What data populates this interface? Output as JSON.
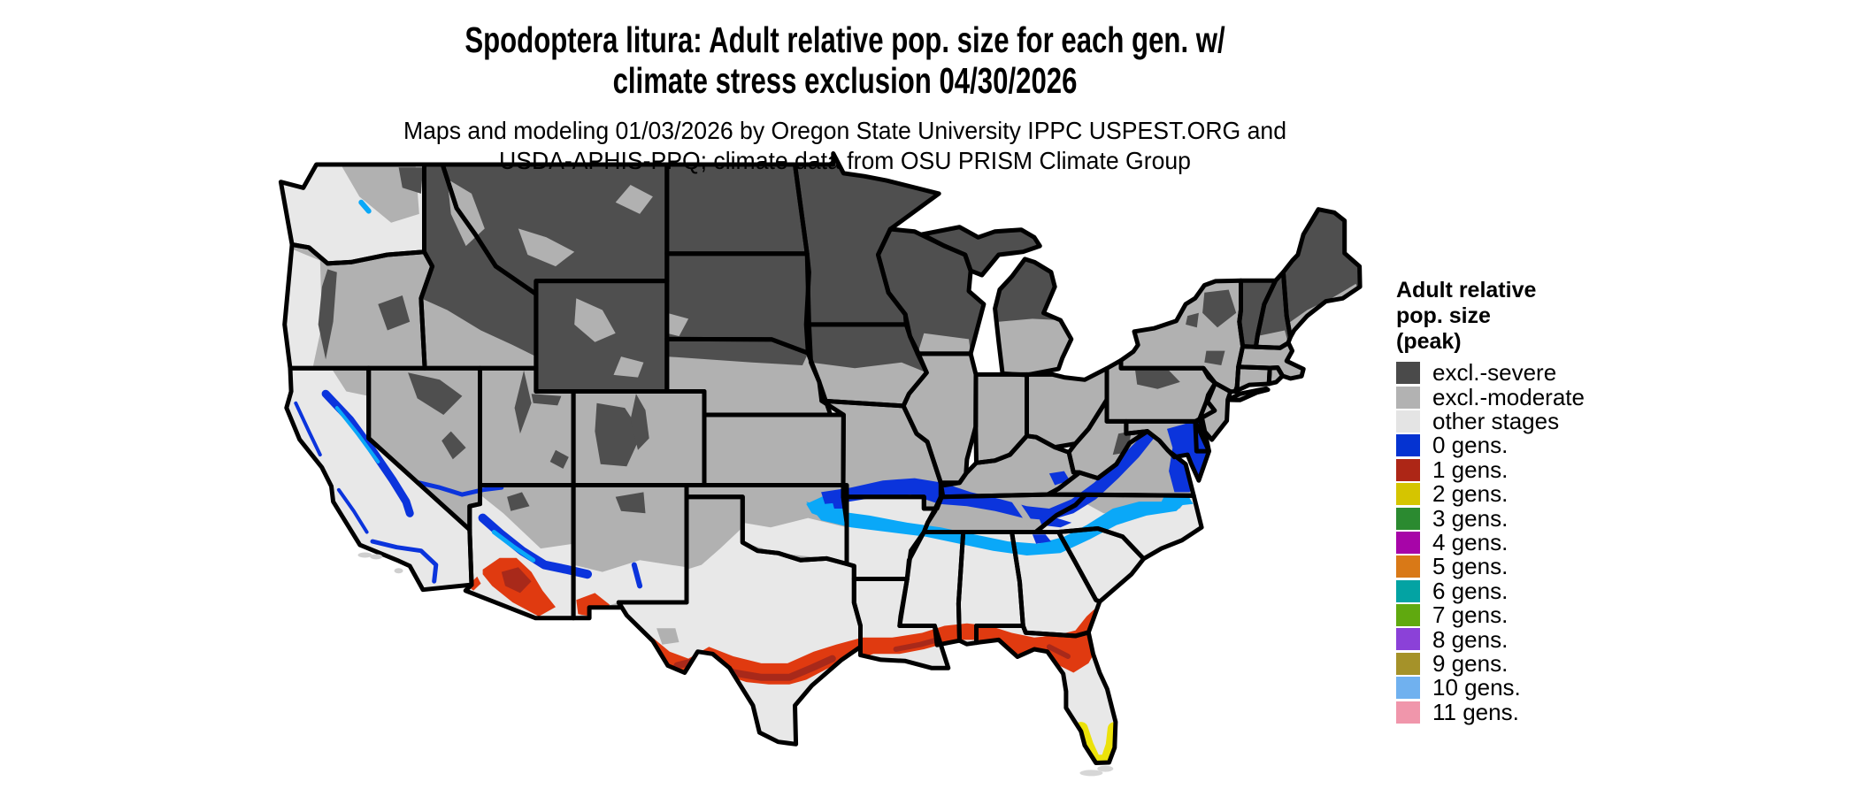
{
  "title": {
    "line1": "Spodoptera litura: Adult relative pop. size for each gen. w/",
    "line2": "climate stress exclusion 04/30/2026"
  },
  "subtitle": {
    "line1": "Maps and modeling 01/03/2026 by Oregon State University IPPC USPEST.ORG and",
    "line2": "USDA-APHIS-PPQ; climate data from OSU PRISM Climate Group"
  },
  "legend": {
    "title_lines": [
      "Adult relative",
      "pop. size",
      "(peak)"
    ],
    "items": [
      {
        "label": "excl.-severe",
        "color": "#4a4a4a"
      },
      {
        "label": "excl.-moderate",
        "color": "#b2b2b2"
      },
      {
        "label": "other stages",
        "color": "#e4e4e4"
      },
      {
        "label": "0 gens.",
        "color": "#0533d1"
      },
      {
        "label": "1 gens.",
        "color": "#ad2616"
      },
      {
        "label": "2 gens.",
        "color": "#d5c500"
      },
      {
        "label": "3 gens.",
        "color": "#2b8a30"
      },
      {
        "label": "4 gens.",
        "color": "#a705a8"
      },
      {
        "label": "5 gens.",
        "color": "#d97917"
      },
      {
        "label": "6 gens.",
        "color": "#03a3a3"
      },
      {
        "label": "7 gens.",
        "color": "#60a90f"
      },
      {
        "label": "8 gens.",
        "color": "#8b41d8"
      },
      {
        "label": "9 gens.",
        "color": "#a59229"
      },
      {
        "label": "10 gens.",
        "color": "#70b1ef"
      },
      {
        "label": "11 gens.",
        "color": "#f096ab"
      }
    ]
  },
  "map": {
    "background": "#ffffff",
    "border_color": "#000000",
    "category_colors": {
      "excl_severe": "#4f4f4f",
      "excl_moderate": "#b1b1b1",
      "other_stages": "#e8e8e8",
      "gens0_blue": "#0b34dc",
      "gens0_fringe_cyan": "#0aa8f8",
      "gens1_red": "#e03a10",
      "gens1_dark_red": "#a8291a",
      "gens2_yellow": "#ece20a",
      "islands_gray": "#d6d6d6"
    }
  }
}
